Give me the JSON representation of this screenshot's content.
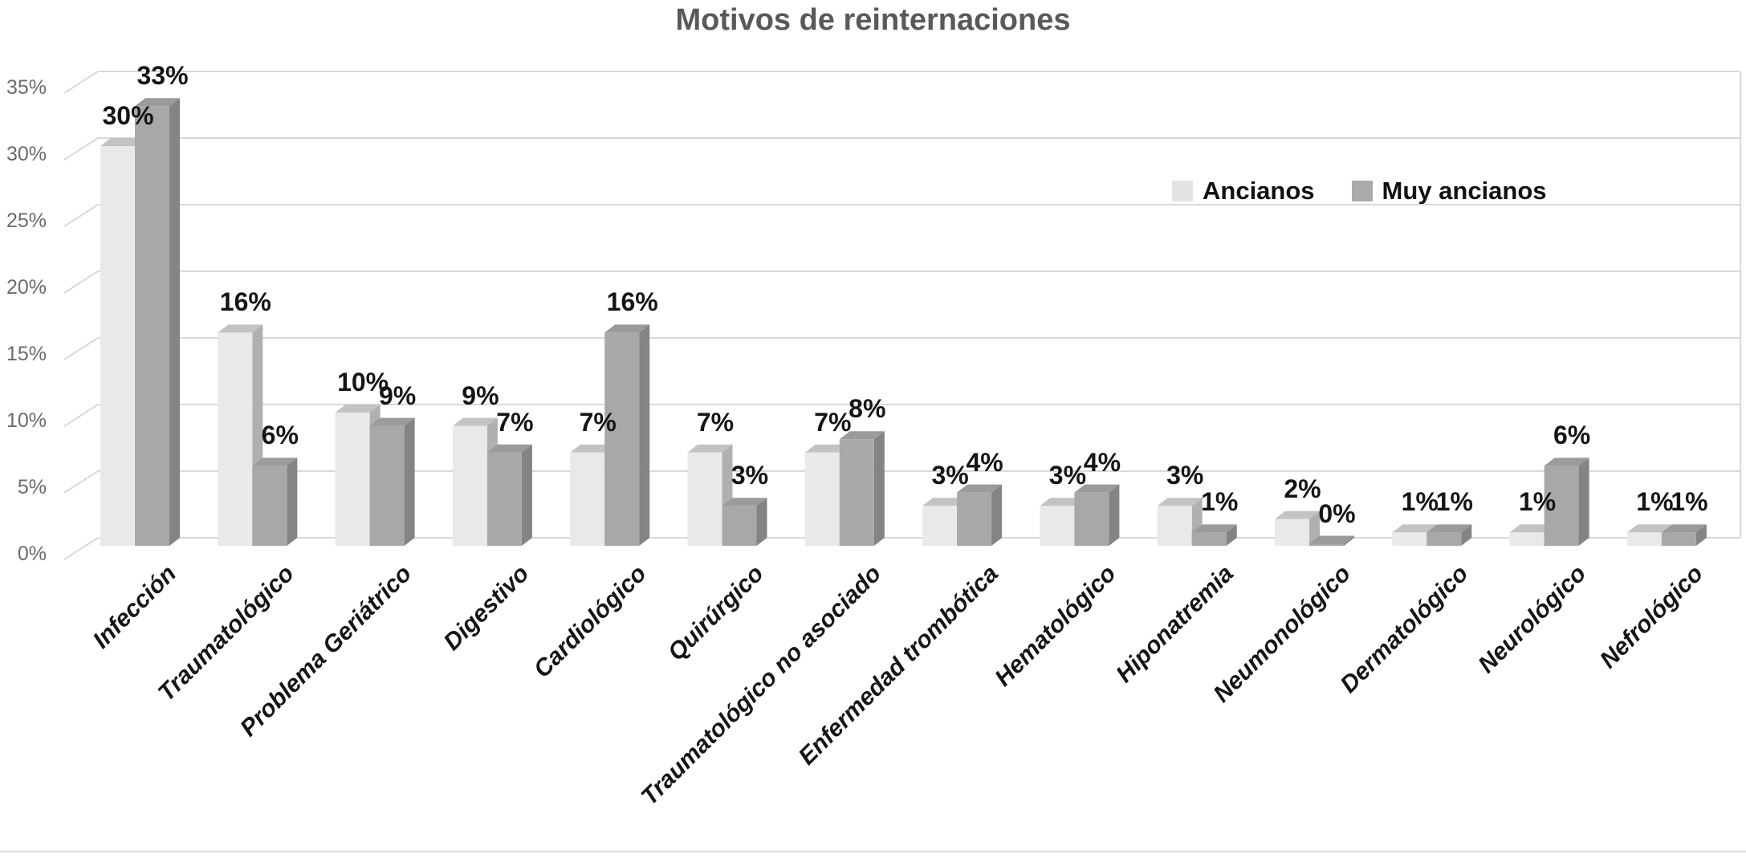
{
  "title": "Motivos de reinternaciones",
  "chart_data": {
    "type": "bar",
    "style": "3d-clustered-column",
    "title": "Motivos de reinternaciones",
    "categories": [
      "Infección",
      "Traumatológico",
      "Problema Geriátrico",
      "Digestivo",
      "Cardiológico",
      "Quirúrgico",
      "Traumatológico no asociado",
      "Enfermedad trombótica",
      "Hematológico",
      "Hiponatremia",
      "Neumonológico",
      "Dermatológico",
      "Neurológico",
      "Nefrológico"
    ],
    "series": [
      {
        "name": "Ancianos",
        "values": [
          30,
          16,
          10,
          9,
          7,
          7,
          7,
          3,
          3,
          3,
          2,
          1,
          1,
          1
        ],
        "value_suffix": "%"
      },
      {
        "name": "Muy ancianos",
        "values": [
          33,
          6,
          9,
          7,
          16,
          3,
          8,
          4,
          4,
          1,
          0,
          1,
          6,
          1
        ],
        "value_suffix": "%"
      }
    ],
    "xlabel": "",
    "ylabel": "",
    "ylim": [
      0,
      35
    ],
    "ytick_step": 5,
    "ytick_labels": [
      "0%",
      "5%",
      "10%",
      "15%",
      "20%",
      "25%",
      "30%",
      "35%"
    ],
    "grid": true,
    "data_labels": true,
    "legend_position": "inside-upper-right",
    "colors": {
      "title_text": "#595959",
      "axis_text": "#6b6b6b",
      "label_text": "#151515",
      "gridline": "#d9d9d9",
      "series": [
        {
          "front": "#e9e9e9",
          "top": "#c3c3c3",
          "side": "#b0b0b0",
          "legend_swatch": "#e3e3e3"
        },
        {
          "front": "#a8a8a8",
          "top": "#9b9b9b",
          "side": "#848484",
          "legend_swatch": "#ababab"
        }
      ]
    }
  }
}
